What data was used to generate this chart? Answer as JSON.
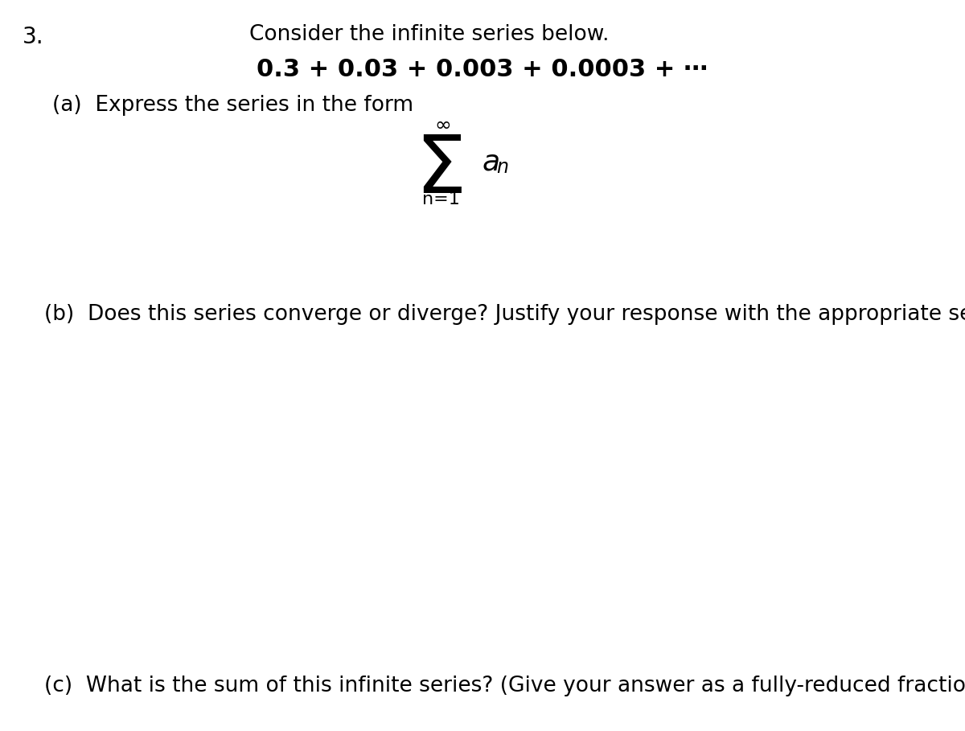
{
  "background_color": "#ffffff",
  "problem_number": "3.",
  "line1": "Consider the infinite series below.",
  "line2": "0.3 + 0.03 + 0.003 + 0.0003 + ⋯",
  "part_a_label": "(a)  Express the series in the form",
  "part_b_label": "(b)  Does this series converge or diverge? Justify your response with the appropriate series test.",
  "part_c_label": "(c)  What is the sum of this infinite series? (Give your answer as a fully-reduced fraction.)",
  "sigma_symbol": "Σ",
  "infinity_symbol": "∞",
  "a_n_text": "a",
  "n_text": "n",
  "n_eq_1": "n=1",
  "text_color": "#000000",
  "font_size_main": 19,
  "font_size_number": 20,
  "font_size_sigma": 72,
  "font_size_sigma_sub_sup": 16,
  "font_size_an": 26,
  "font_size_an_sub": 17,
  "fig_width": 12.0,
  "fig_height": 9.09,
  "dpi": 100
}
